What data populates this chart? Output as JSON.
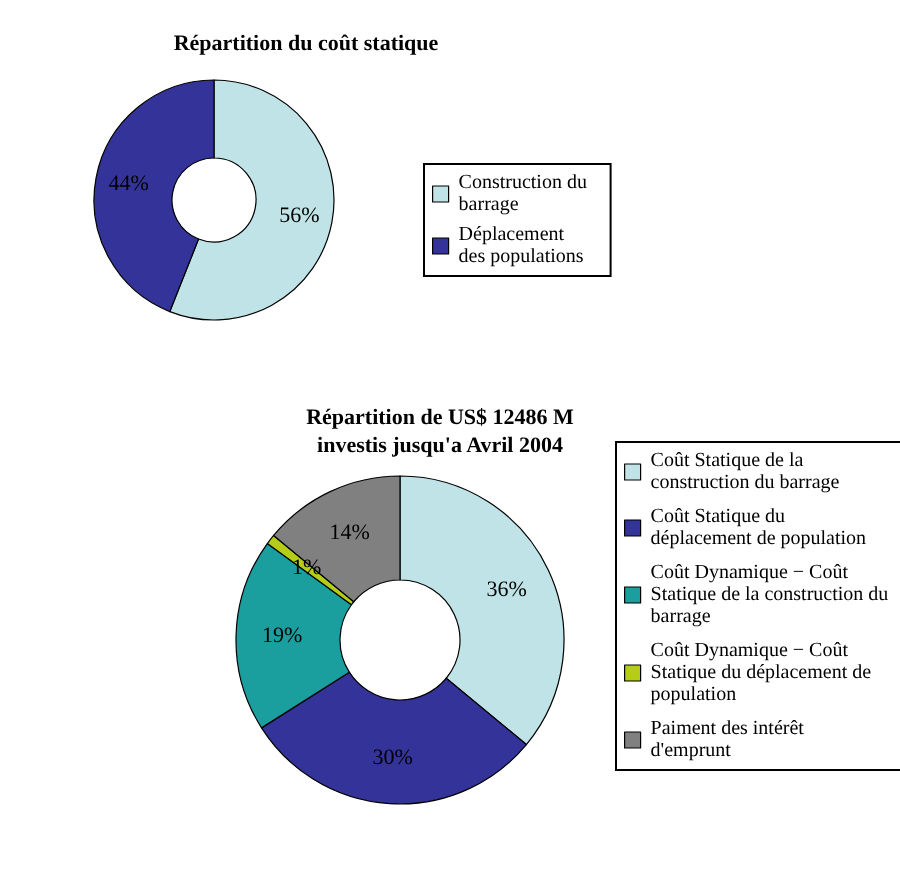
{
  "chart_data": [
    {
      "type": "donut",
      "title": "Répartition du coût statique",
      "categories": [
        "Construction du barrage",
        "Déplacement des populations"
      ],
      "values": [
        56,
        44
      ],
      "colors": [
        "#bfe3e6",
        "#333399"
      ],
      "value_labels": [
        "56%",
        "44%"
      ],
      "legend": "right"
    },
    {
      "type": "donut",
      "title": "Répartition de US$ 12486 M\ninvestis jusqu'a Avril 2004",
      "categories": [
        "Coût Statique de la construction du barrage",
        "Coût Statique du déplacement de population",
        "Coût Dynamique − Coût Statique de la construction du barrage",
        "Coût Dynamique − Coût Statique du déplacement de population",
        "Paiment des intérêt d'emprunt"
      ],
      "values": [
        36,
        30,
        19,
        1,
        14
      ],
      "colors": [
        "#bfe3e6",
        "#333399",
        "#1a9e9e",
        "#b5cc18",
        "#808080"
      ],
      "value_labels": [
        "36%",
        "30%",
        "19%",
        "1%",
        "14%"
      ],
      "legend": "right"
    }
  ]
}
